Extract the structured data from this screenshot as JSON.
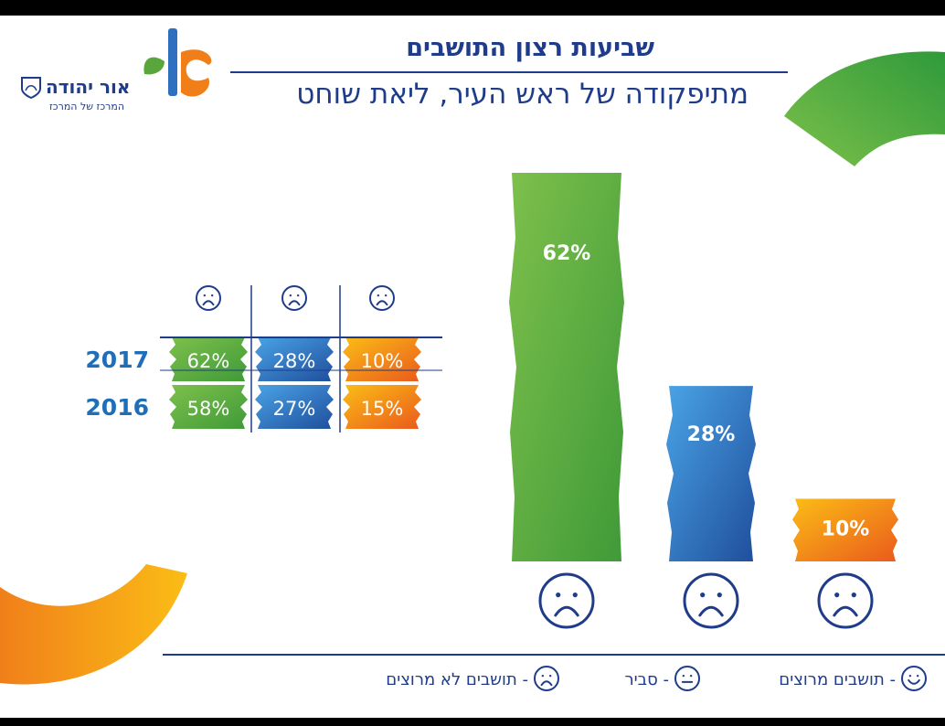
{
  "header": {
    "title": "שביעות רצון התושבים",
    "subtitle": "מתיפקודה של ראש העיר, ליאת שוחט",
    "brand_name": "אור יהודה",
    "brand_tagline": "המרכז של המרכז"
  },
  "colors": {
    "navy": "#1f3c8a",
    "green": "#58a63c",
    "blue": "#2f6fc0",
    "orange": "#f07f1a",
    "yellow": "#fbbd16",
    "year_blue": "#1e6fb8"
  },
  "chart_data": [
    {
      "type": "table",
      "columns": [
        "satisfied-face",
        "neutral-face",
        "unsatisfied-face"
      ],
      "rows": [
        {
          "year": "2017",
          "values": [
            62,
            28,
            10
          ],
          "labels": [
            "62%",
            "28%",
            "10%"
          ]
        },
        {
          "year": "2016",
          "values": [
            58,
            27,
            15
          ],
          "labels": [
            "58%",
            "27%",
            "15%"
          ]
        }
      ]
    },
    {
      "type": "bar",
      "categories": [
        "satisfied-face",
        "neutral-face",
        "unsatisfied-face"
      ],
      "values": [
        62,
        28,
        10
      ],
      "labels": [
        "62%",
        "28%",
        "10%"
      ],
      "ylim": [
        0,
        62
      ]
    }
  ],
  "legend": [
    {
      "icon": "smile-face-icon",
      "text": "- תושבים מרוצים"
    },
    {
      "icon": "neutral-face-icon",
      "text": "- סביר"
    },
    {
      "icon": "sad-face-icon",
      "text": "- תושבים לא מרוצים"
    }
  ]
}
